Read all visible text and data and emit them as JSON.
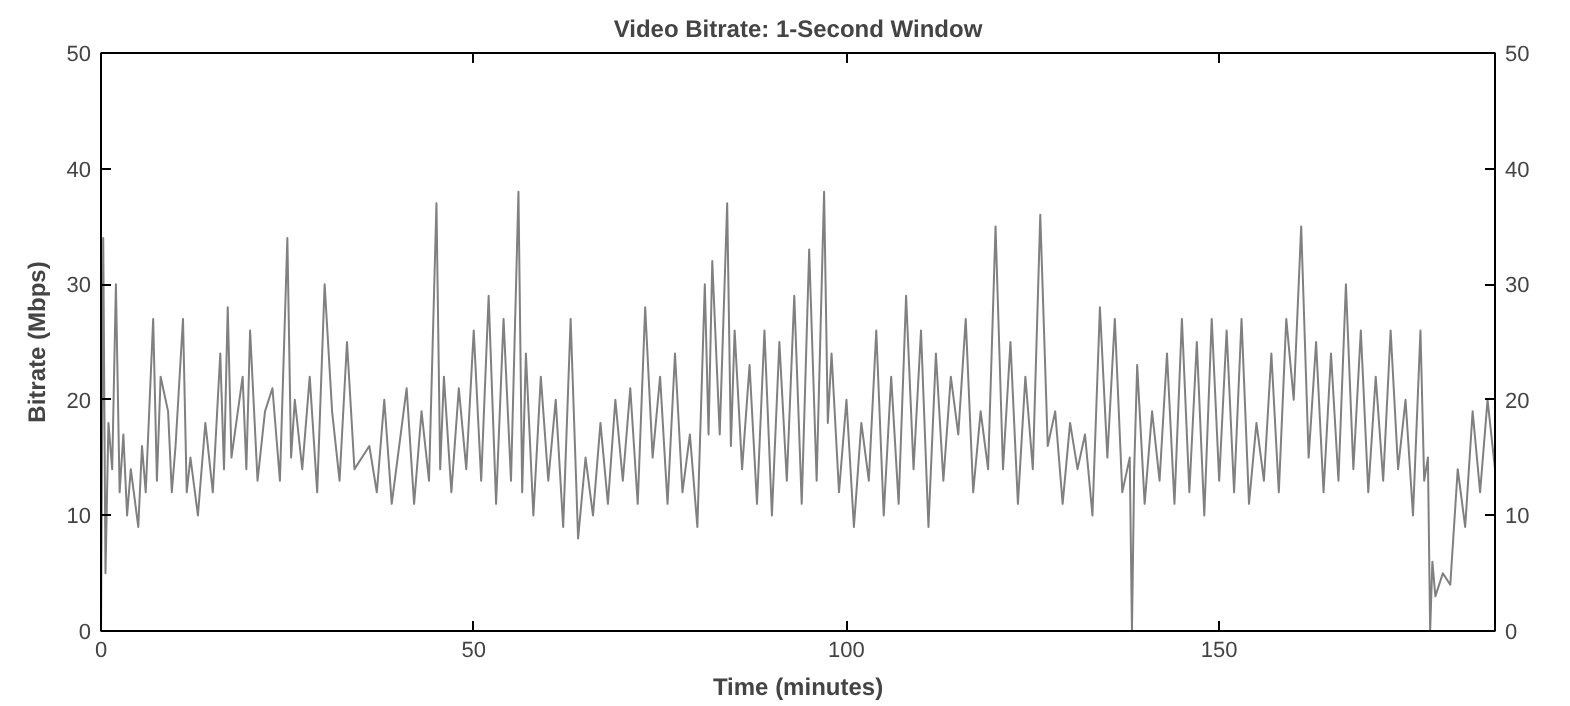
{
  "chart_data": {
    "type": "line",
    "title": "Video Bitrate: 1-Second Window",
    "xlabel": "Time (minutes)",
    "ylabel": "Bitrate (Mbps)",
    "xlim": [
      0,
      187
    ],
    "xticks": [
      0,
      50,
      100,
      150
    ],
    "ylim": [
      0,
      50
    ],
    "yticks": [
      0,
      10,
      20,
      30,
      40,
      50
    ],
    "y2lim": [
      0,
      50
    ],
    "y2ticks": [
      0,
      10,
      20,
      30,
      40,
      50
    ],
    "series": [
      {
        "color": "#808080",
        "x": [
          0,
          0.3,
          0.6,
          1,
          1.5,
          2,
          2.5,
          3,
          3.5,
          4,
          5,
          5.5,
          6,
          7,
          7.5,
          8,
          9,
          9.5,
          10,
          11,
          11.5,
          12,
          13,
          14,
          15,
          16,
          16.5,
          17,
          17.5,
          19,
          19.5,
          20,
          21,
          22,
          23,
          24,
          25,
          25.5,
          26,
          27,
          28,
          29,
          30,
          31,
          32,
          33,
          34,
          36,
          37,
          38,
          39,
          40,
          41,
          42,
          43,
          44,
          45,
          45.5,
          46,
          47,
          48,
          49,
          50,
          51,
          52,
          53,
          54,
          55,
          56,
          56.5,
          57,
          58,
          59,
          60,
          61,
          62,
          63,
          64,
          65,
          66,
          67,
          68,
          69,
          70,
          71,
          72,
          73,
          74,
          75,
          76,
          77,
          78,
          79,
          80,
          81,
          81.5,
          82,
          83,
          84,
          84.5,
          85,
          86,
          87,
          88,
          89,
          90,
          91,
          92,
          93,
          94,
          95,
          96,
          97,
          97.5,
          98,
          99,
          100,
          101,
          102,
          103,
          104,
          105,
          106,
          107,
          108,
          109,
          110,
          111,
          112,
          113,
          114,
          115,
          116,
          117,
          118,
          119,
          120,
          121,
          122,
          123,
          124,
          125,
          126,
          127,
          128,
          129,
          130,
          131,
          132,
          133,
          134,
          135,
          136,
          137,
          138,
          138.3,
          138.6,
          139,
          140,
          141,
          142,
          143,
          144,
          145,
          146,
          147,
          148,
          149,
          150,
          151,
          152,
          153,
          154,
          155,
          156,
          157,
          158,
          159,
          160,
          161,
          162,
          163,
          164,
          165,
          166,
          167,
          168,
          169,
          170,
          171,
          172,
          173,
          174,
          175,
          176,
          177,
          177.5,
          178,
          178.3,
          178.6,
          179,
          180,
          181,
          182,
          183,
          184,
          185,
          186,
          187
        ],
        "values": [
          0,
          34,
          5,
          18,
          14,
          30,
          12,
          17,
          10,
          14,
          9,
          16,
          12,
          27,
          13,
          22,
          19,
          12,
          16,
          27,
          12,
          15,
          10,
          18,
          12,
          24,
          14,
          28,
          15,
          22,
          14,
          26,
          13,
          19,
          21,
          13,
          34,
          15,
          20,
          14,
          22,
          12,
          30,
          19,
          13,
          25,
          14,
          16,
          12,
          20,
          11,
          16,
          21,
          11,
          19,
          13,
          37,
          14,
          22,
          12,
          21,
          14,
          26,
          13,
          29,
          11,
          27,
          13,
          38,
          12,
          24,
          10,
          22,
          13,
          20,
          9,
          27,
          8,
          15,
          10,
          18,
          11,
          20,
          13,
          21,
          11,
          28,
          15,
          22,
          11,
          24,
          12,
          17,
          9,
          30,
          17,
          32,
          17,
          37,
          16,
          26,
          14,
          23,
          11,
          26,
          10,
          25,
          13,
          29,
          11,
          33,
          13,
          38,
          18,
          24,
          12,
          20,
          9,
          18,
          13,
          26,
          10,
          22,
          11,
          29,
          14,
          26,
          9,
          24,
          13,
          22,
          17,
          27,
          12,
          19,
          14,
          35,
          14,
          25,
          11,
          22,
          14,
          36,
          16,
          19,
          11,
          18,
          14,
          17,
          10,
          28,
          15,
          27,
          12,
          15,
          0,
          14,
          23,
          11,
          19,
          13,
          24,
          11,
          27,
          12,
          25,
          10,
          27,
          13,
          26,
          12,
          27,
          11,
          18,
          13,
          24,
          12,
          27,
          20,
          35,
          15,
          25,
          12,
          24,
          13,
          30,
          14,
          26,
          12,
          22,
          13,
          26,
          14,
          20,
          10,
          26,
          13,
          15,
          0,
          6,
          3,
          5,
          4,
          14,
          9,
          19,
          12,
          20,
          14
        ]
      }
    ]
  }
}
